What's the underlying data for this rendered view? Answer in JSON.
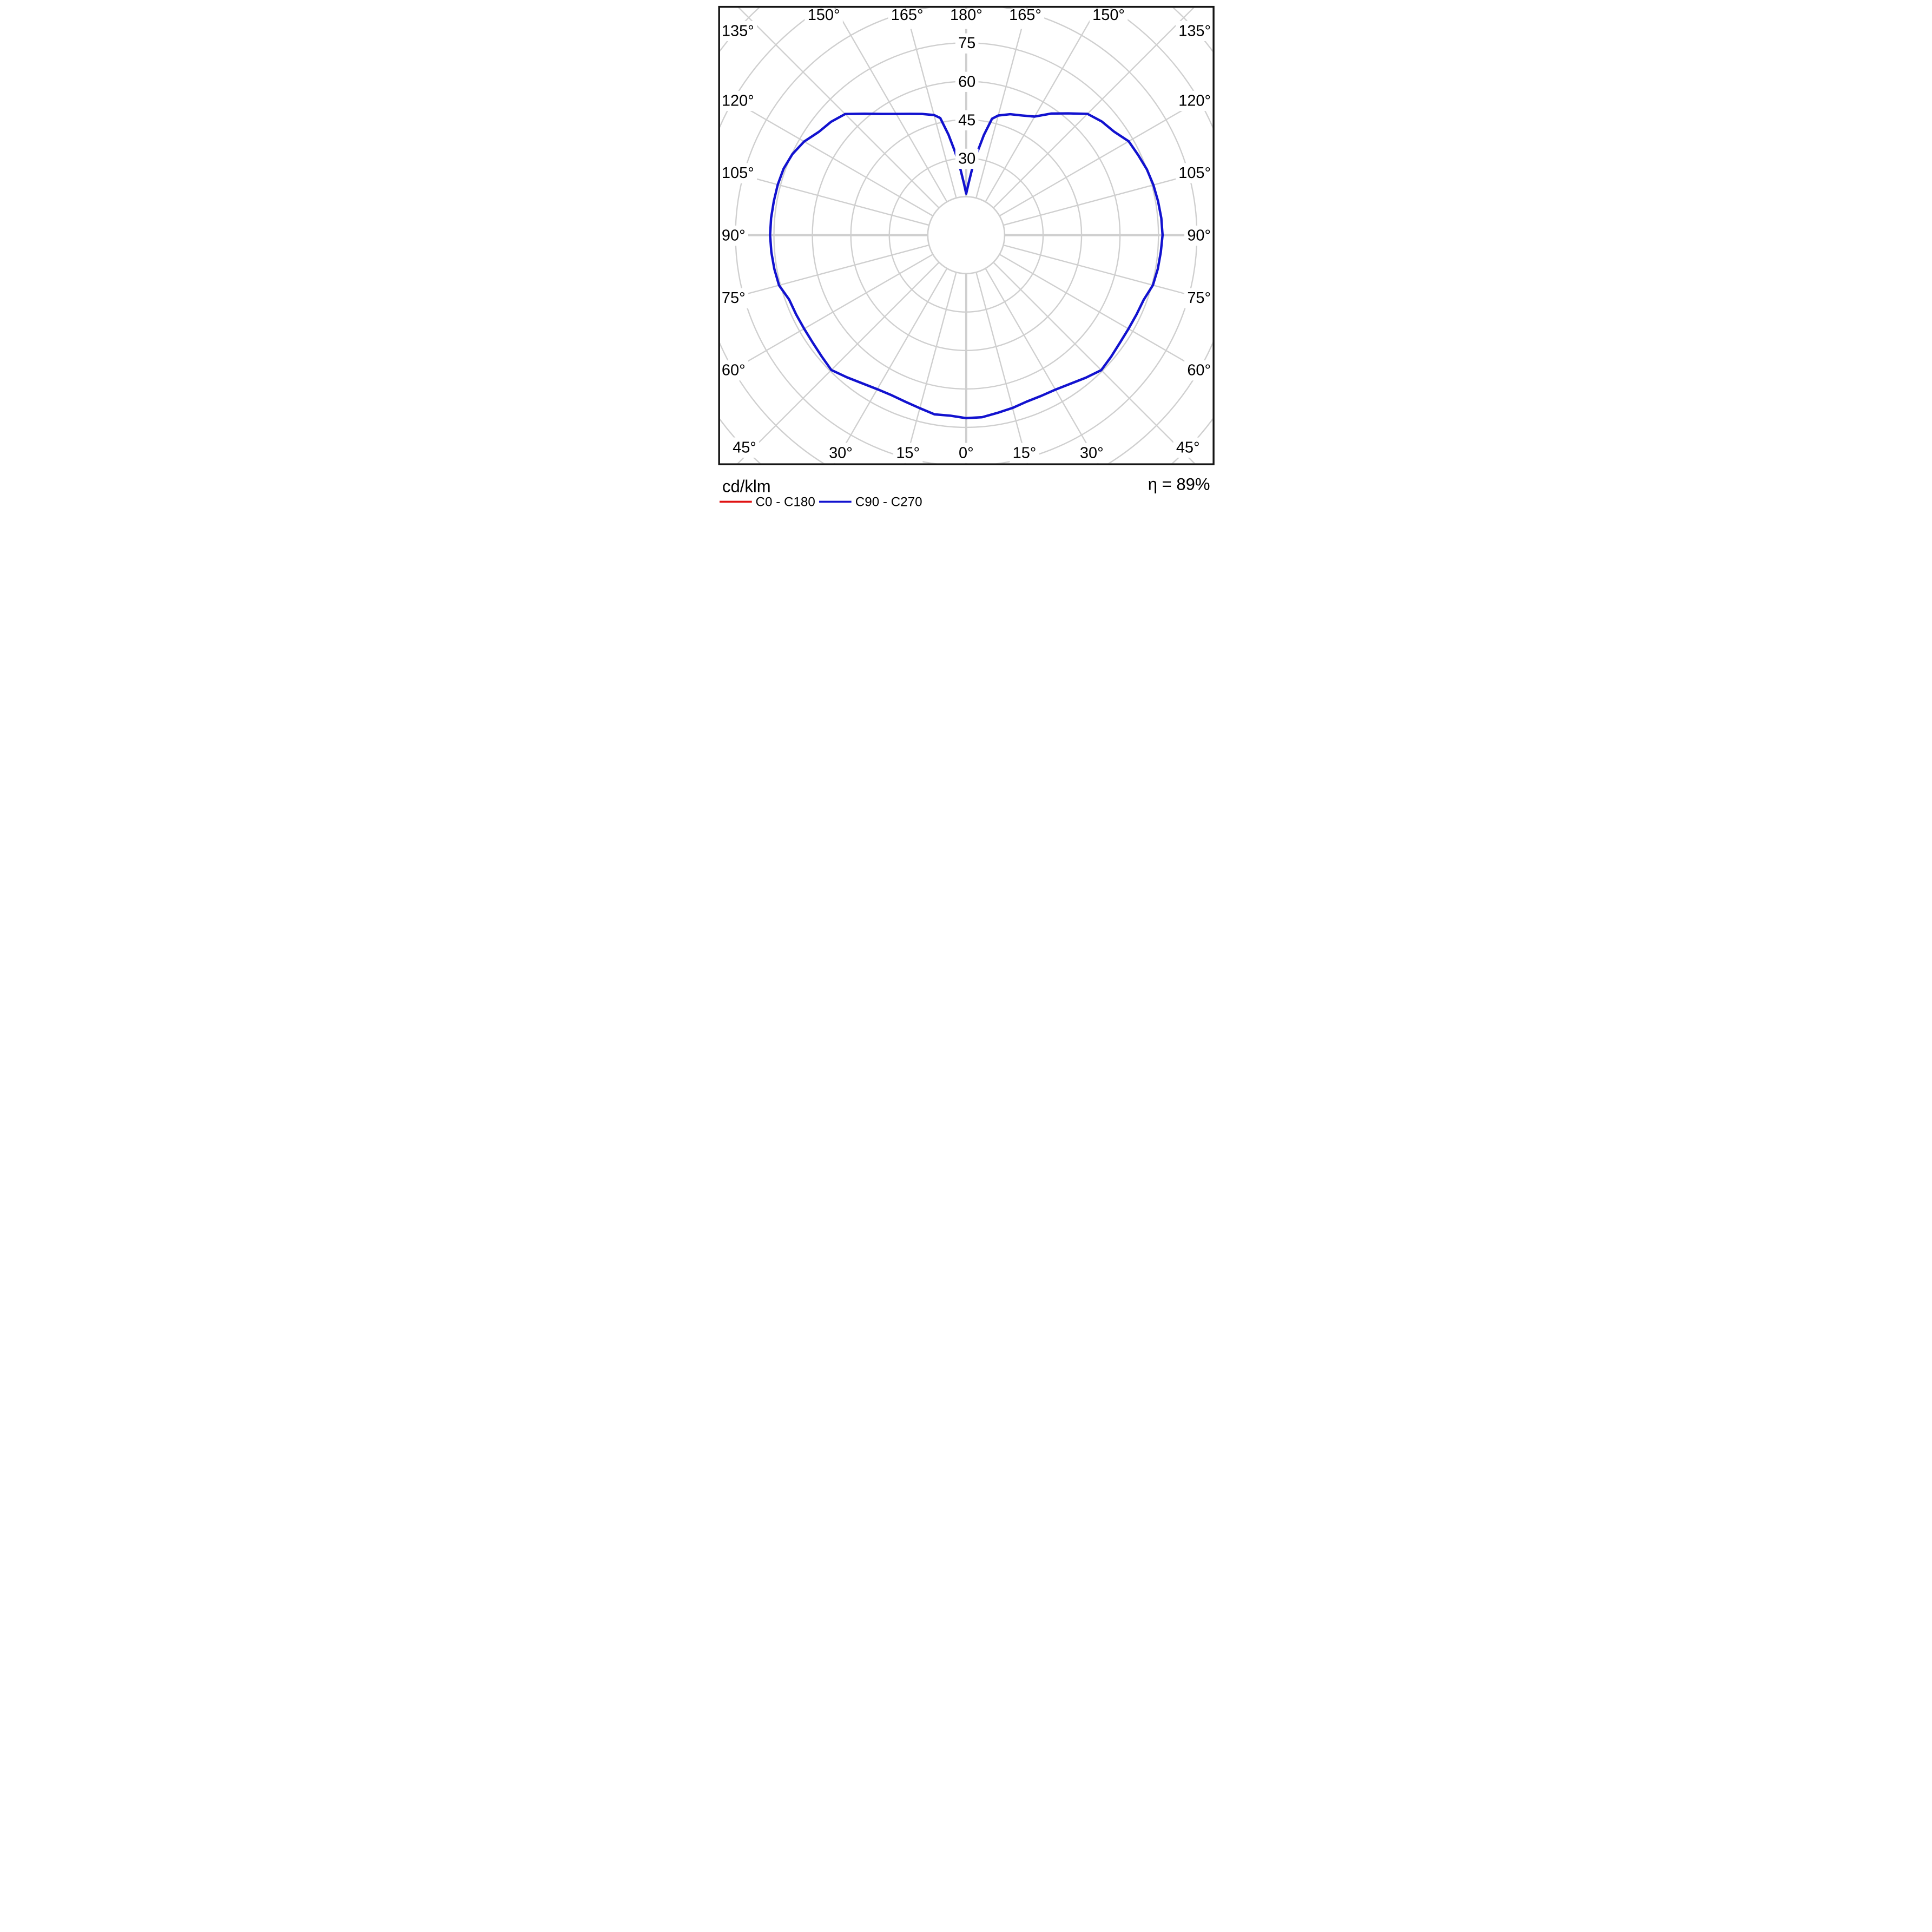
{
  "chart_data": {
    "type": "polar_line",
    "description": "Luminous intensity distribution curve (polar photometric diagram)",
    "units_label": "cd/klm",
    "efficiency_label": "η = 89%",
    "radial_axis": {
      "unit": "cd/klm",
      "gridline_step": 15,
      "gridlines": [
        15,
        30,
        45,
        60,
        75,
        90,
        105,
        120
      ],
      "labeled_values": [
        30,
        45,
        60,
        75
      ]
    },
    "angular_axis": {
      "step_deg": 15,
      "zero_direction": "down",
      "labels": [
        {
          "deg": 0,
          "text": "0°"
        },
        {
          "deg": 15,
          "text": "15°"
        },
        {
          "deg": 30,
          "text": "30°"
        },
        {
          "deg": 45,
          "text": "45°"
        },
        {
          "deg": 60,
          "text": "60°"
        },
        {
          "deg": 75,
          "text": "75°"
        },
        {
          "deg": 90,
          "text": "90°"
        },
        {
          "deg": 105,
          "text": "105°"
        },
        {
          "deg": 120,
          "text": "120°"
        },
        {
          "deg": 135,
          "text": "135°"
        },
        {
          "deg": 150,
          "text": "150°"
        },
        {
          "deg": 165,
          "text": "165°"
        },
        {
          "deg": 180,
          "text": "180°"
        }
      ]
    },
    "legend": [
      {
        "name": "C0 - C180",
        "color": "#e01212"
      },
      {
        "name": "C90 - C270",
        "color": "#1212cf"
      }
    ],
    "series": [
      {
        "name": "C0 - C180",
        "color": "#e01212",
        "visible_in_plot": false,
        "points_right": [],
        "points_left": []
      },
      {
        "name": "C90 - C270",
        "color": "#1212cf",
        "visible_in_plot": true,
        "points_right": [
          [
            0,
            71.4
          ],
          [
            5,
            71.3
          ],
          [
            10,
            70.4
          ],
          [
            15,
            69.8
          ],
          [
            20,
            69.1
          ],
          [
            25,
            69.2
          ],
          [
            30,
            69.6
          ],
          [
            35,
            70.8
          ],
          [
            40,
            72.6
          ],
          [
            45,
            74.5
          ],
          [
            50,
            73.8
          ],
          [
            55,
            73.2
          ],
          [
            60,
            73.1
          ],
          [
            65,
            73.3
          ],
          [
            70,
            73.7
          ],
          [
            75,
            75.4
          ],
          [
            80,
            75.9
          ],
          [
            85,
            76.2
          ],
          [
            90,
            76.6
          ],
          [
            95,
            76.4
          ],
          [
            100,
            76.0
          ],
          [
            105,
            75.6
          ],
          [
            110,
            75.0
          ],
          [
            115,
            74.0
          ],
          [
            120,
            73.2
          ],
          [
            125,
            70.4
          ],
          [
            130,
            69.0
          ],
          [
            135,
            66.9
          ],
          [
            140,
            62.0
          ],
          [
            145,
            57.9
          ],
          [
            150,
            53.4
          ],
          [
            155,
            51.5
          ],
          [
            160,
            50.2
          ],
          [
            165,
            48.3
          ],
          [
            167.5,
            46.5
          ],
          [
            170,
            39.6
          ],
          [
            172.5,
            32.3
          ],
          [
            175,
            25.6
          ],
          [
            177.5,
            20.0
          ],
          [
            180,
            16.2
          ]
        ],
        "points_left": [
          [
            0,
            71.4
          ],
          [
            5,
            70.7
          ],
          [
            10,
            71.0
          ],
          [
            15,
            69.9
          ],
          [
            20,
            69.2
          ],
          [
            25,
            68.9
          ],
          [
            30,
            69.4
          ],
          [
            35,
            70.6
          ],
          [
            40,
            72.4
          ],
          [
            45,
            74.4
          ],
          [
            50,
            73.6
          ],
          [
            55,
            73.1
          ],
          [
            60,
            73.0
          ],
          [
            65,
            73.2
          ],
          [
            70,
            73.5
          ],
          [
            75,
            75.6
          ],
          [
            80,
            76.0
          ],
          [
            85,
            76.3
          ],
          [
            90,
            76.5
          ],
          [
            95,
            76.4
          ],
          [
            100,
            76.2
          ],
          [
            105,
            76.1
          ],
          [
            110,
            75.8
          ],
          [
            115,
            74.8
          ],
          [
            120,
            73.0
          ],
          [
            125,
            70.2
          ],
          [
            130,
            68.8
          ],
          [
            135,
            66.8
          ],
          [
            140,
            61.8
          ],
          [
            145,
            57.7
          ],
          [
            150,
            54.6
          ],
          [
            155,
            52.2
          ],
          [
            160,
            50.3
          ],
          [
            165,
            48.5
          ],
          [
            167.5,
            46.8
          ],
          [
            170,
            39.8
          ],
          [
            172.5,
            32.5
          ],
          [
            175,
            25.8
          ],
          [
            177.5,
            20.2
          ],
          [
            180,
            16.2
          ]
        ]
      }
    ],
    "style": {
      "grid_color": "#cfcfcf",
      "frame_color": "#141414",
      "background": "#ffffff"
    }
  }
}
